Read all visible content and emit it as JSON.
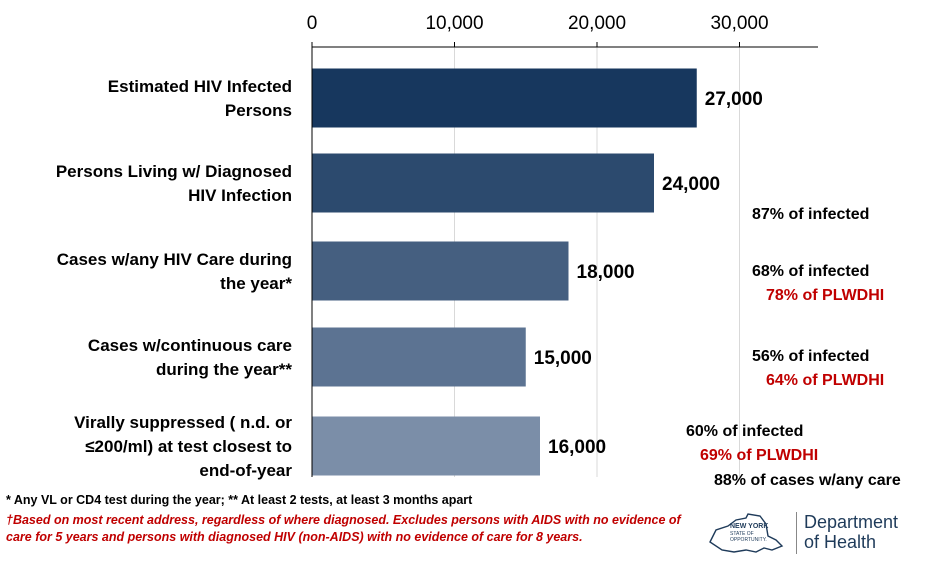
{
  "chart_data": {
    "type": "bar",
    "orientation": "horizontal",
    "title": "",
    "xlabel": "",
    "ylabel": "",
    "xlim": [
      0,
      35000
    ],
    "ticks": [
      0,
      10000,
      20000,
      30000
    ],
    "tick_labels": [
      "0",
      "10,000",
      "20,000",
      "30,000"
    ],
    "categories": [
      [
        "Estimated HIV Infected",
        "Persons"
      ],
      [
        "Persons Living w/ Diagnosed",
        "HIV Infection"
      ],
      [
        "Cases w/any HIV Care during",
        "the year*"
      ],
      [
        "Cases w/continuous care",
        "during the year**"
      ],
      [
        "Virally suppressed ( n.d. or",
        "≤200/ml) at test closest to",
        "end-of-year"
      ]
    ],
    "values": [
      27000,
      24000,
      18000,
      15000,
      16000
    ],
    "value_labels": [
      "27,000",
      "24,000",
      "18,000",
      "15,000",
      "16,000"
    ],
    "bar_colors": [
      "#17375e",
      "#2c4a6e",
      "#455f80",
      "#5c7392",
      "#7b8ea8"
    ],
    "annotations": [
      {
        "lines": [
          {
            "text": "87% of infected",
            "color": "black"
          }
        ]
      },
      {
        "lines": [
          {
            "text": "68% of infected",
            "color": "black"
          },
          {
            "text": "78% of PLWDHI",
            "color": "red"
          }
        ]
      },
      {
        "lines": [
          {
            "text": "56% of infected",
            "color": "black"
          },
          {
            "text": "64% of PLWDHI",
            "color": "red"
          }
        ]
      },
      {
        "lines": [
          {
            "text": "60% of infected",
            "color": "black"
          },
          {
            "text": "69% of PLWDHI",
            "color": "red"
          },
          {
            "text": "88% of cases w/any care",
            "color": "black"
          }
        ]
      }
    ]
  },
  "footnotes": {
    "note1": "* Any VL or CD4 test during the year; ** At least 2 tests, at least 3 months apart",
    "note2": "†Based on most recent address, regardless of where diagnosed. Excludes persons with AIDS with no evidence of care for 5 years and persons with diagnosed HIV (non-AIDS) with no evidence of care for 8 years."
  },
  "logo": {
    "state_text": [
      "NEW YORK",
      "STATE OF",
      "OPPORTUNITY."
    ],
    "dept_lines": [
      "Department",
      "of Health"
    ]
  },
  "colors": {
    "axis": "#000000",
    "red_text": "#c00000"
  }
}
